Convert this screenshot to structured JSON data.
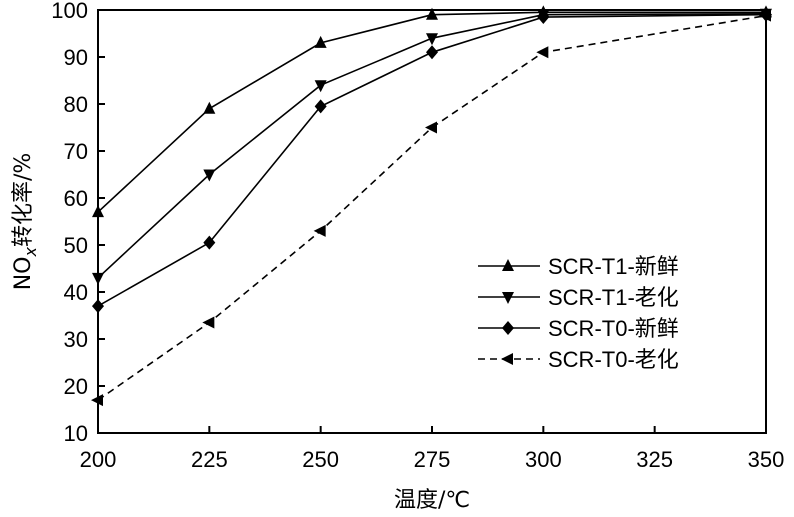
{
  "chart_data": {
    "type": "line",
    "xlabel": "温度/℃",
    "ylabel_parts": {
      "pre": "NO",
      "sub": "x",
      "post": "转化率/%"
    },
    "xlim": [
      200,
      350
    ],
    "ylim": [
      10,
      100
    ],
    "x_ticks": [
      200,
      225,
      250,
      275,
      300,
      325,
      350
    ],
    "y_ticks": [
      10,
      20,
      30,
      40,
      50,
      60,
      70,
      80,
      90,
      100
    ],
    "x_tick_labels": [
      "200",
      "225",
      "250",
      "275",
      "300",
      "325",
      "350"
    ],
    "y_tick_labels": [
      "10",
      "20",
      "30",
      "40",
      "50",
      "60",
      "70",
      "80",
      "90",
      "100"
    ],
    "grid": false,
    "legend_position": "lower-right",
    "x": [
      200,
      225,
      250,
      275,
      300,
      350
    ],
    "series": [
      {
        "name": "SCR-T1-新鲜",
        "marker": "triangle-up",
        "dash": "solid",
        "values": [
          57,
          79,
          93,
          99,
          99.5,
          99.5
        ]
      },
      {
        "name": "SCR-T1-老化",
        "marker": "triangle-down",
        "dash": "solid",
        "values": [
          43,
          65,
          84,
          94,
          99,
          99.2
        ]
      },
      {
        "name": "SCR-T0-新鲜",
        "marker": "diamond",
        "dash": "solid",
        "values": [
          37,
          50.5,
          79.5,
          91,
          98.5,
          99
        ]
      },
      {
        "name": "SCR-T0-老化",
        "marker": "triangle-left",
        "dash": "dashed",
        "values": [
          17,
          33.5,
          53,
          75,
          91,
          98.8
        ]
      }
    ]
  }
}
